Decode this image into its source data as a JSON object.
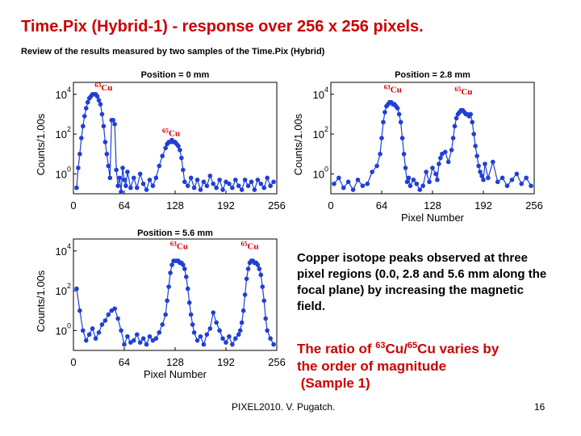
{
  "slide": {
    "title": "Time.Pix (Hybrid-1)  - response over 256 x 256 pixels.",
    "subtitle": "Review of the results measured by two samples of the Time.Pix (Hybrid)",
    "description": "Copper isotope peaks observed at three  pixel regions (0.0,  2.8 and 5.6 mm along the focal plane) by increasing the magnetic field.",
    "ratio": {
      "part1": "The ratio of ",
      "iso1_mass": "63",
      "iso1_sym": "Cu/",
      "iso2_mass": "65",
      "iso2_sym": "Cu varies by",
      "line2": "the order of magnitude",
      "line3": "(Sample 1)"
    },
    "footer": "PIXEL2010. V. Pugatch.",
    "page_number": "16"
  },
  "colors": {
    "title": "#cc0000",
    "marker": "#1f3fd6",
    "annotation": "#cc0000"
  },
  "chart_data": [
    {
      "type": "scatter",
      "title": "Position = 0 mm",
      "xlabel": "",
      "ylabel": "Counts/1.00s",
      "xlim": [
        0,
        256
      ],
      "ylim_log10": [
        -1,
        4.6
      ],
      "yscale": "log",
      "xticks": [
        "0",
        "64",
        "128",
        "192",
        "256"
      ],
      "yticks": [
        "10",
        "10",
        "10"
      ],
      "ytick_exponents": [
        "0",
        "2",
        "4"
      ],
      "annotations": [
        {
          "mass": "63",
          "element": "Cu",
          "x": 38,
          "y_log10": 4.2
        },
        {
          "mass": "65",
          "element": "Cu",
          "x": 123,
          "y_log10": 1.9
        }
      ],
      "series": [
        {
          "x": [
            4,
            6,
            8,
            10,
            12,
            14,
            16,
            18,
            20,
            22,
            24,
            26,
            28,
            30,
            32,
            34,
            36,
            38,
            40,
            42,
            44,
            46,
            48,
            50,
            52,
            54,
            56,
            58,
            60,
            62,
            64,
            66,
            68,
            72,
            76,
            80,
            84,
            88,
            92,
            96,
            100,
            104,
            108,
            112,
            116,
            118,
            120,
            122,
            124,
            126,
            128,
            130,
            132,
            134,
            136,
            138,
            140,
            144,
            148,
            152,
            156,
            160,
            164,
            168,
            172,
            176,
            180,
            184,
            188,
            192,
            196,
            200,
            204,
            208,
            212,
            216,
            220,
            224,
            228,
            232,
            236,
            240,
            244,
            248,
            252
          ],
          "y_log10": [
            -0.7,
            0.3,
            1.0,
            1.8,
            2.4,
            2.9,
            3.3,
            3.6,
            3.8,
            3.9,
            4.0,
            4.0,
            4.0,
            3.9,
            3.7,
            3.5,
            3.0,
            2.4,
            1.6,
            1.0,
            0.4,
            -0.2,
            2.7,
            2.7,
            2.5,
            0.2,
            -0.6,
            -0.2,
            -0.9,
            0.3,
            -0.3,
            -0.6,
            0.1,
            -0.7,
            -0.2,
            -0.7,
            0.0,
            -0.5,
            -0.8,
            -0.3,
            -0.6,
            -0.2,
            0.4,
            0.9,
            1.3,
            1.5,
            1.6,
            1.6,
            1.7,
            1.6,
            1.6,
            1.5,
            1.4,
            1.2,
            0.8,
            0.2,
            -0.4,
            -0.6,
            -0.2,
            -0.7,
            -0.3,
            -0.8,
            -0.4,
            -0.6,
            -0.1,
            -0.5,
            -0.7,
            -0.3,
            -0.8,
            -0.4,
            -0.5,
            -0.7,
            -0.3,
            -0.6,
            -0.8,
            -0.3,
            -0.6,
            -0.4,
            -0.8,
            -0.3,
            -0.5,
            -0.7,
            -0.2,
            -0.6,
            -0.4
          ]
        }
      ]
    },
    {
      "type": "scatter",
      "title": "Position = 2.8 mm",
      "xlabel": "Pixel Number",
      "ylabel": "Counts/1.00s",
      "xlim": [
        0,
        256
      ],
      "ylim_log10": [
        -1,
        4.6
      ],
      "yscale": "log",
      "xticks": [
        "0",
        "64",
        "128",
        "192",
        "256"
      ],
      "yticks": [
        "10",
        "10",
        "10"
      ],
      "ytick_exponents": [
        "0",
        "2",
        "4"
      ],
      "annotations": [
        {
          "mass": "63",
          "element": "Cu",
          "x": 78,
          "y_log10": 4.1
        },
        {
          "mass": "65",
          "element": "Cu",
          "x": 167,
          "y_log10": 4.0
        }
      ],
      "series": [
        {
          "x": [
            4,
            10,
            16,
            22,
            28,
            34,
            40,
            46,
            52,
            58,
            62,
            64,
            66,
            68,
            70,
            72,
            74,
            76,
            78,
            80,
            82,
            84,
            86,
            88,
            90,
            92,
            94,
            96,
            98,
            100,
            104,
            108,
            112,
            116,
            120,
            124,
            128,
            132,
            134,
            136,
            138,
            140,
            144,
            148,
            152,
            154,
            156,
            158,
            160,
            162,
            164,
            166,
            168,
            170,
            172,
            174,
            176,
            178,
            180,
            182,
            184,
            186,
            188,
            190,
            192,
            194,
            198,
            204,
            210,
            216,
            222,
            228,
            234,
            240,
            246,
            252
          ],
          "y_log10": [
            -0.5,
            -0.2,
            -0.7,
            -0.4,
            -0.8,
            -0.3,
            -0.6,
            -0.5,
            0.1,
            0.4,
            1.0,
            1.8,
            2.6,
            3.1,
            3.4,
            3.5,
            3.6,
            3.6,
            3.5,
            3.5,
            3.4,
            3.3,
            3.0,
            2.6,
            1.8,
            1.0,
            0.3,
            -0.4,
            -0.2,
            -0.6,
            -0.3,
            -0.5,
            -0.8,
            -0.6,
            0.1,
            -0.4,
            0.3,
            0.0,
            -0.3,
            0.5,
            0.8,
            1.0,
            1.1,
            0.6,
            1.2,
            1.8,
            2.4,
            2.8,
            3.0,
            3.1,
            3.2,
            3.2,
            3.1,
            3.0,
            3.0,
            2.9,
            3.0,
            2.6,
            2.0,
            1.4,
            0.9,
            0.4,
            0.1,
            -0.1,
            -0.3,
            0.5,
            -0.2,
            0.6,
            -0.4,
            -0.2,
            -0.6,
            -0.3,
            0.0,
            -0.5,
            -0.2,
            -0.6
          ]
        }
      ]
    },
    {
      "type": "scatter",
      "title": "Position = 5.6 mm",
      "xlabel": "Pixel Number",
      "ylabel": "Counts/1.00s",
      "xlim": [
        0,
        256
      ],
      "ylim_log10": [
        -1,
        4.6
      ],
      "yscale": "log",
      "xticks": [
        "0",
        "64",
        "128",
        "192",
        "256"
      ],
      "yticks": [
        "10",
        "10",
        "10"
      ],
      "ytick_exponents": [
        "0",
        "2",
        "4"
      ],
      "annotations": [
        {
          "mass": "63",
          "element": "Cu",
          "x": 133,
          "y_log10": 4.1
        },
        {
          "mass": "65",
          "element": "Cu",
          "x": 222,
          "y_log10": 4.1
        }
      ],
      "series": [
        {
          "x": [
            4,
            8,
            12,
            16,
            20,
            24,
            28,
            32,
            36,
            40,
            44,
            48,
            52,
            56,
            60,
            64,
            68,
            72,
            76,
            80,
            84,
            88,
            92,
            96,
            100,
            104,
            108,
            112,
            116,
            118,
            120,
            122,
            124,
            126,
            128,
            130,
            132,
            134,
            136,
            138,
            140,
            142,
            144,
            146,
            148,
            150,
            152,
            156,
            160,
            164,
            168,
            172,
            176,
            180,
            184,
            188,
            192,
            196,
            200,
            204,
            208,
            210,
            212,
            214,
            216,
            218,
            220,
            222,
            224,
            226,
            228,
            230,
            232,
            234,
            236,
            238,
            240,
            242,
            244,
            248,
            252
          ],
          "y_log10": [
            2.1,
            1.0,
            0.0,
            -0.5,
            -0.2,
            0.1,
            -0.4,
            -0.1,
            0.3,
            0.5,
            0.8,
            1.0,
            1.1,
            0.6,
            0.0,
            -0.7,
            -0.3,
            -0.6,
            -0.5,
            -0.2,
            -0.6,
            -0.4,
            -0.7,
            -0.3,
            -0.5,
            -0.4,
            -0.1,
            0.3,
            0.8,
            1.5,
            2.2,
            2.9,
            3.3,
            3.5,
            3.5,
            3.5,
            3.5,
            3.4,
            3.4,
            3.3,
            3.1,
            2.7,
            2.1,
            1.4,
            0.8,
            0.3,
            -0.1,
            -0.5,
            -0.3,
            -0.7,
            -0.2,
            0.1,
            0.9,
            0.4,
            0.0,
            -0.4,
            -0.6,
            -0.3,
            -0.7,
            -0.4,
            -0.2,
            0.0,
            0.4,
            1.0,
            1.8,
            2.6,
            3.1,
            3.4,
            3.5,
            3.5,
            3.4,
            3.4,
            3.3,
            3.1,
            2.8,
            2.2,
            1.5,
            0.6,
            0.0,
            -0.4,
            -0.7
          ]
        }
      ]
    }
  ]
}
